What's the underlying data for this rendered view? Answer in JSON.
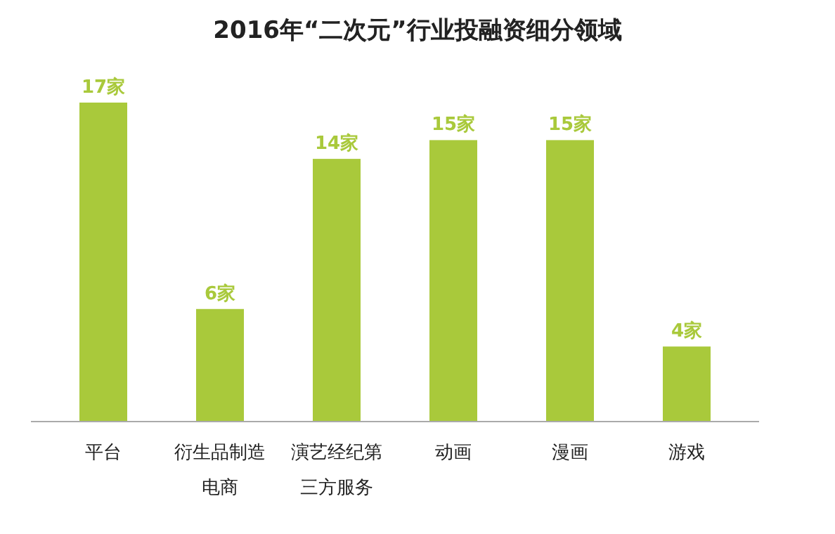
{
  "chart_data": {
    "type": "bar",
    "title": "2016年“二次元”行业投融资细分领域",
    "categories": [
      "平台",
      "衍生品制造电商",
      "演艺经纪第三方服务",
      "动画",
      "漫画",
      "游戏"
    ],
    "values": [
      17,
      6,
      14,
      15,
      15,
      4
    ],
    "value_labels": [
      "17家",
      "6家",
      "14家",
      "15家",
      "15家",
      "4家"
    ],
    "color": "#a9c93b"
  }
}
